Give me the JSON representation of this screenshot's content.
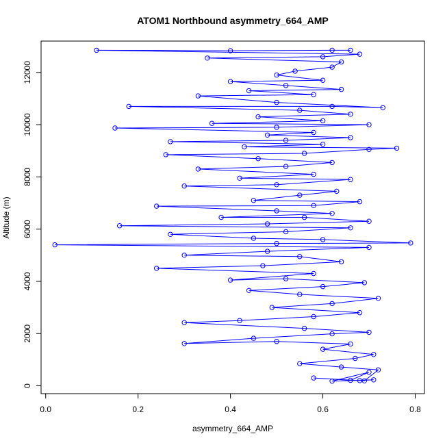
{
  "chart_data": {
    "type": "line",
    "title": "ATOM1 Northbound asymmetry_664_AMP",
    "xlabel": "asymmetry_664_AMP",
    "ylabel": "Altitude (m)",
    "xlim": [
      -0.01,
      0.82
    ],
    "ylim": [
      -300,
      13200
    ],
    "xticks": [
      0.0,
      0.2,
      0.4,
      0.6,
      0.8
    ],
    "xtick_labels": [
      "0.0",
      "0.2",
      "0.4",
      "0.6",
      "0.8"
    ],
    "yticks": [
      0,
      2000,
      4000,
      6000,
      8000,
      10000,
      12000
    ],
    "ytick_labels": [
      "0",
      "2000",
      "4000",
      "6000",
      "8000",
      "10000",
      "12000"
    ],
    "grid": false,
    "legend": "none",
    "series": [
      {
        "color": "#0000ff",
        "marker": "open-circle",
        "points": [
          [
            0.68,
            200
          ],
          [
            0.71,
            230
          ],
          [
            0.62,
            180
          ],
          [
            0.7,
            520
          ],
          [
            0.66,
            210
          ],
          [
            0.58,
            300
          ],
          [
            0.69,
            190
          ],
          [
            0.72,
            610
          ],
          [
            0.64,
            720
          ],
          [
            0.55,
            850
          ],
          [
            0.67,
            1050
          ],
          [
            0.71,
            1200
          ],
          [
            0.6,
            1400
          ],
          [
            0.66,
            1600
          ],
          [
            0.5,
            1700
          ],
          [
            0.3,
            1620
          ],
          [
            0.45,
            1820
          ],
          [
            0.62,
            1990
          ],
          [
            0.7,
            2050
          ],
          [
            0.56,
            2200
          ],
          [
            0.3,
            2420
          ],
          [
            0.42,
            2500
          ],
          [
            0.58,
            2650
          ],
          [
            0.68,
            2800
          ],
          [
            0.49,
            3000
          ],
          [
            0.62,
            3150
          ],
          [
            0.72,
            3350
          ],
          [
            0.55,
            3500
          ],
          [
            0.44,
            3650
          ],
          [
            0.6,
            3800
          ],
          [
            0.69,
            3950
          ],
          [
            0.52,
            4100
          ],
          [
            0.4,
            4050
          ],
          [
            0.58,
            4300
          ],
          [
            0.24,
            4500
          ],
          [
            0.47,
            4600
          ],
          [
            0.64,
            4750
          ],
          [
            0.55,
            4950
          ],
          [
            0.3,
            5000
          ],
          [
            0.48,
            5150
          ],
          [
            0.7,
            5300
          ],
          [
            0.02,
            5400
          ],
          [
            0.5,
            5450
          ],
          [
            0.79,
            5470
          ],
          [
            0.6,
            5600
          ],
          [
            0.45,
            5650
          ],
          [
            0.27,
            5800
          ],
          [
            0.52,
            5900
          ],
          [
            0.66,
            6050
          ],
          [
            0.16,
            6130
          ],
          [
            0.48,
            6200
          ],
          [
            0.7,
            6300
          ],
          [
            0.56,
            6450
          ],
          [
            0.38,
            6450
          ],
          [
            0.62,
            6600
          ],
          [
            0.5,
            6700
          ],
          [
            0.24,
            6880
          ],
          [
            0.58,
            6900
          ],
          [
            0.68,
            7050
          ],
          [
            0.45,
            7100
          ],
          [
            0.55,
            7300
          ],
          [
            0.63,
            7450
          ],
          [
            0.3,
            7650
          ],
          [
            0.5,
            7700
          ],
          [
            0.66,
            7900
          ],
          [
            0.42,
            7950
          ],
          [
            0.58,
            8100
          ],
          [
            0.33,
            8300
          ],
          [
            0.52,
            8400
          ],
          [
            0.62,
            8550
          ],
          [
            0.46,
            8700
          ],
          [
            0.26,
            8850
          ],
          [
            0.56,
            8900
          ],
          [
            0.7,
            9050
          ],
          [
            0.76,
            9100
          ],
          [
            0.43,
            9150
          ],
          [
            0.6,
            9250
          ],
          [
            0.27,
            9350
          ],
          [
            0.52,
            9400
          ],
          [
            0.66,
            9500
          ],
          [
            0.48,
            9600
          ],
          [
            0.58,
            9700
          ],
          [
            0.15,
            9870
          ],
          [
            0.5,
            9900
          ],
          [
            0.7,
            10000
          ],
          [
            0.36,
            10050
          ],
          [
            0.6,
            10150
          ],
          [
            0.46,
            10300
          ],
          [
            0.66,
            10400
          ],
          [
            0.55,
            10550
          ],
          [
            0.18,
            10700
          ],
          [
            0.62,
            10700
          ],
          [
            0.73,
            10650
          ],
          [
            0.5,
            10850
          ],
          [
            0.33,
            11100
          ],
          [
            0.58,
            11150
          ],
          [
            0.44,
            11300
          ],
          [
            0.64,
            11350
          ],
          [
            0.52,
            11500
          ],
          [
            0.4,
            11650
          ],
          [
            0.6,
            11700
          ],
          [
            0.5,
            11900
          ],
          [
            0.54,
            12050
          ],
          [
            0.62,
            12200
          ],
          [
            0.64,
            12400
          ],
          [
            0.35,
            12550
          ],
          [
            0.6,
            12600
          ],
          [
            0.68,
            12700
          ],
          [
            0.11,
            12850
          ],
          [
            0.4,
            12830
          ],
          [
            0.62,
            12850
          ],
          [
            0.66,
            12850
          ]
        ]
      }
    ]
  }
}
